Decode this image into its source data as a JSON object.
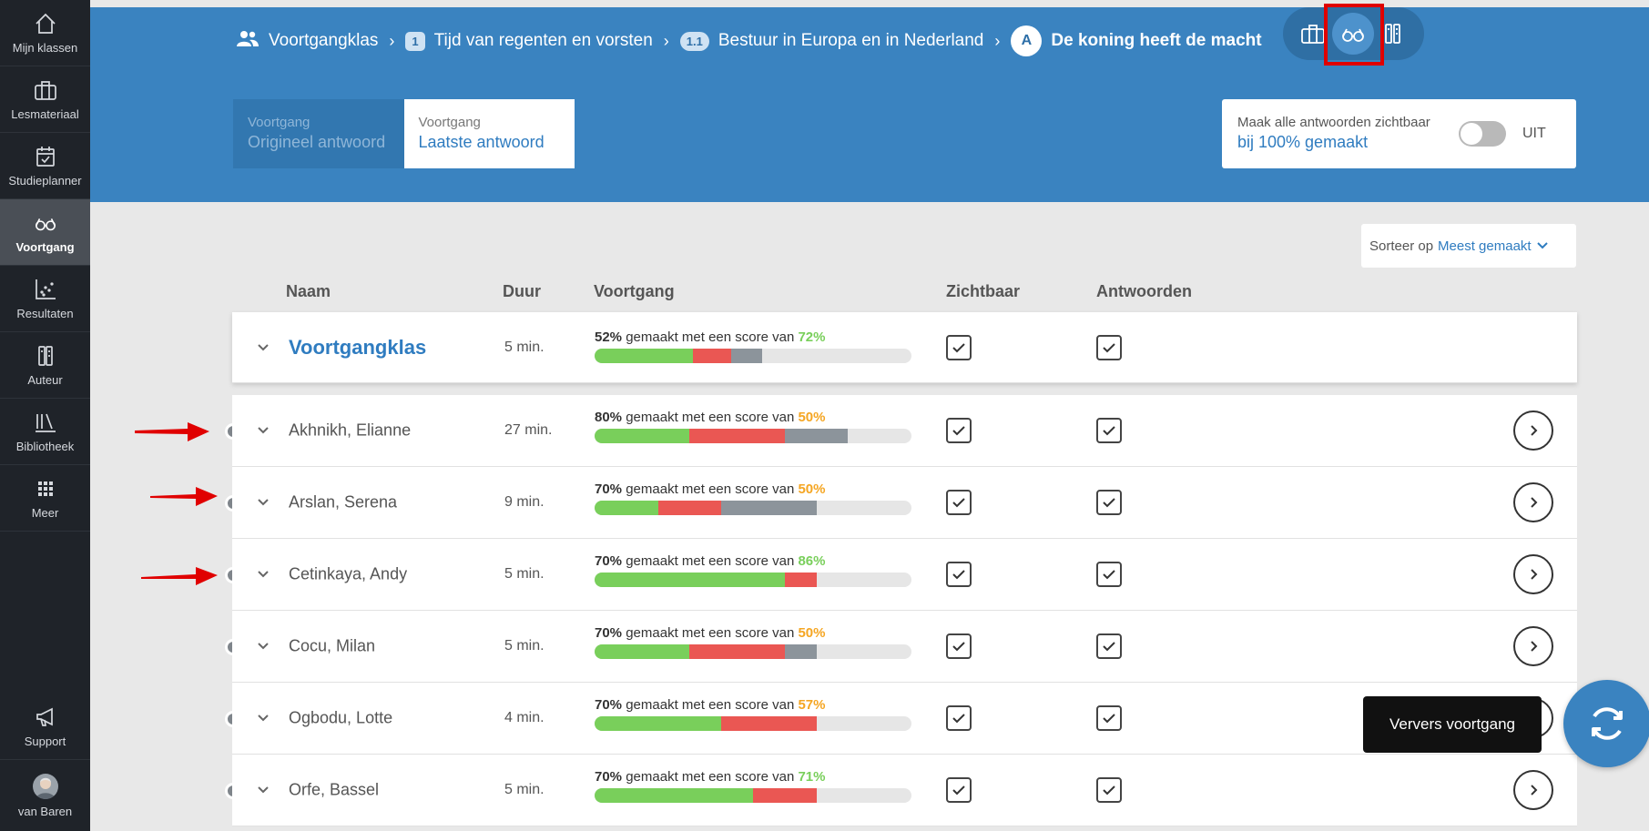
{
  "sidebar": {
    "items": [
      {
        "label": "Mijn klassen",
        "icon": "home-icon"
      },
      {
        "label": "Lesmateriaal",
        "icon": "briefcase-icon"
      },
      {
        "label": "Studieplanner",
        "icon": "calendar-check-icon"
      },
      {
        "label": "Voortgang",
        "icon": "glasses-icon",
        "active": true
      },
      {
        "label": "Resultaten",
        "icon": "scatter-chart-icon"
      },
      {
        "label": "Auteur",
        "icon": "author-icon"
      },
      {
        "label": "Bibliotheek",
        "icon": "library-icon"
      },
      {
        "label": "Meer",
        "icon": "grid-icon"
      }
    ],
    "support": "Support",
    "user": "van Baren"
  },
  "breadcrumb": {
    "class": "Voortgangklas",
    "chapter_num": "1",
    "chapter": "Tijd van regenten en vorsten",
    "section_num": "1.1",
    "section": "Bestuur in Europa en in Nederland",
    "lesson_letter": "A",
    "lesson": "De koning heeft de macht"
  },
  "modes": {
    "original": {
      "small": "Voortgang",
      "big": "Origineel antwoord"
    },
    "latest": {
      "small": "Voortgang",
      "big": "Laatste antwoord"
    }
  },
  "visibility": {
    "line1": "Maak alle antwoorden zichtbaar",
    "line2": "bij 100% gemaakt",
    "state": "UIT"
  },
  "sort": {
    "label": "Sorteer op",
    "value": "Meest gemaakt"
  },
  "columns": {
    "name": "Naam",
    "duration": "Duur",
    "progress": "Voortgang",
    "visible": "Zichtbaar",
    "answers": "Antwoorden"
  },
  "text": {
    "made_with_score": " gemaakt met een score van "
  },
  "group": {
    "name": "Voortgangklas",
    "duration": "5 min.",
    "made": "52%",
    "score": "72%",
    "score_color": "#79cf5b",
    "bar": [
      0.31,
      0.12,
      0.1
    ]
  },
  "students": [
    {
      "name": "Akhnikh, Elianne",
      "duration": "27 min.",
      "made": "80%",
      "score": "50%",
      "score_color": "#f5a623",
      "bar": [
        0.3,
        0.3,
        0.2
      ]
    },
    {
      "name": "Arslan, Serena",
      "duration": "9 min.",
      "made": "70%",
      "score": "50%",
      "score_color": "#f5a623",
      "bar": [
        0.2,
        0.2,
        0.3
      ]
    },
    {
      "name": "Cetinkaya, Andy",
      "duration": "5 min.",
      "made": "70%",
      "score": "86%",
      "score_color": "#79cf5b",
      "bar": [
        0.6,
        0.1,
        0.0
      ]
    },
    {
      "name": "Cocu, Milan",
      "duration": "5 min.",
      "made": "70%",
      "score": "50%",
      "score_color": "#f5a623",
      "bar": [
        0.3,
        0.3,
        0.1
      ]
    },
    {
      "name": "Ogbodu, Lotte",
      "duration": "4 min.",
      "made": "70%",
      "score": "57%",
      "score_color": "#f5a623",
      "bar": [
        0.4,
        0.3,
        0.0
      ]
    },
    {
      "name": "Orfe, Bassel",
      "duration": "5 min.",
      "made": "70%",
      "score": "71%",
      "score_color": "#79cf5b",
      "bar": [
        0.5,
        0.2,
        0.0
      ]
    }
  ],
  "tooltip": "Ververs voortgang"
}
